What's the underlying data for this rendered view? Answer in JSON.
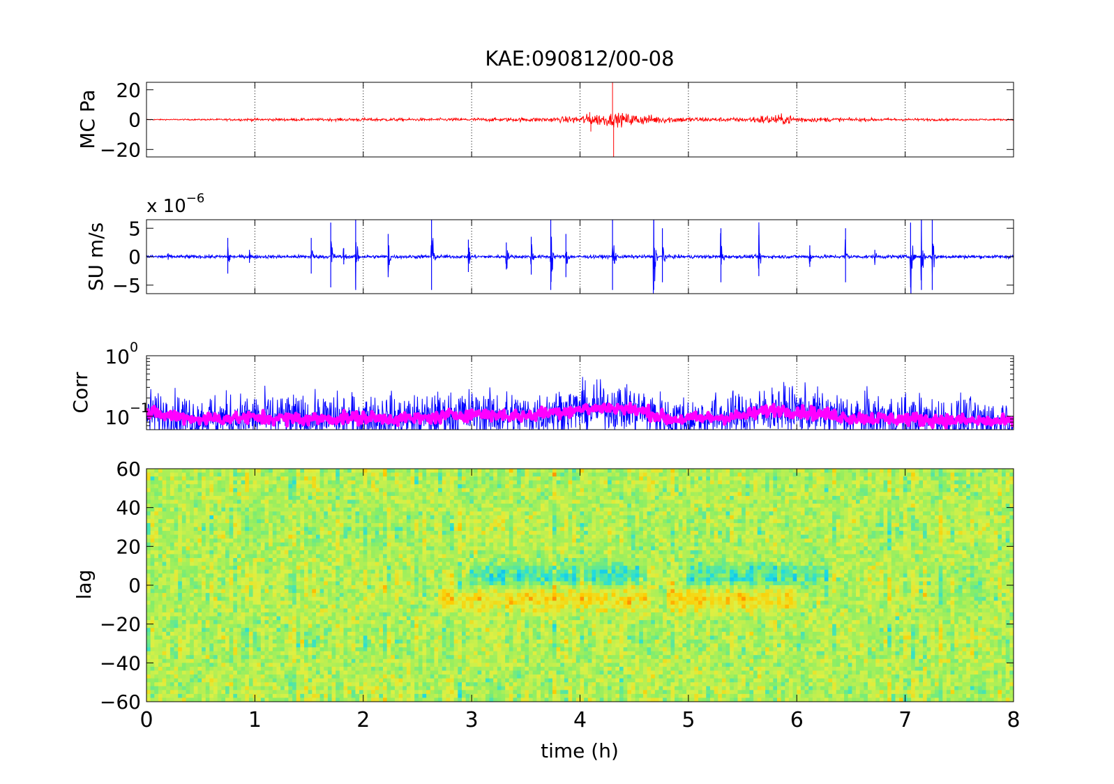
{
  "title": "KAE:090812/00-08",
  "chart_data": [
    {
      "panel": "mc",
      "type": "line",
      "ylabel": "MC Pa",
      "xlim": [
        0,
        8
      ],
      "ylim": [
        -25,
        25
      ],
      "yticks": [
        -20,
        0,
        20
      ],
      "ytick_labels": [
        "−20",
        "0",
        "20"
      ],
      "grid": "x-dotted",
      "colors": {
        "line": "#ff0000"
      },
      "envelope": {
        "x": [
          0,
          0.5,
          1.0,
          1.5,
          2.0,
          2.5,
          3.0,
          3.5,
          3.8,
          4.0,
          4.1,
          4.3,
          4.5,
          4.7,
          5.0,
          5.5,
          5.7,
          5.9,
          6.1,
          6.5,
          7.0,
          7.5,
          8.0
        ],
        "amplitude": [
          0.3,
          0.4,
          0.8,
          0.7,
          1.0,
          0.8,
          1.0,
          1.2,
          1.5,
          2.5,
          3.5,
          4.0,
          3.5,
          2.5,
          1.5,
          1.2,
          2.8,
          3.0,
          1.5,
          1.0,
          0.8,
          0.6,
          0.5
        ]
      },
      "spikes": [
        {
          "x": 4.09,
          "value": 5
        },
        {
          "x": 4.1,
          "value": -8
        },
        {
          "x": 4.3,
          "value": 25
        },
        {
          "x": 4.31,
          "value": -25
        }
      ]
    },
    {
      "panel": "su",
      "type": "line",
      "ylabel": "SU m/s",
      "exponent_label": "x 10",
      "exponent_power": "−6",
      "xlim": [
        0,
        8
      ],
      "ylim": [
        -6.5,
        6.5
      ],
      "yticks": [
        -5,
        0,
        5
      ],
      "ytick_labels": [
        "−5",
        "0",
        "5"
      ],
      "grid": "x-dotted",
      "colors": {
        "line": "#0000ff"
      },
      "baseline_noise": 0.15,
      "bursts": [
        {
          "x": 0.2,
          "amp": 0.6
        },
        {
          "x": 0.4,
          "amp": 0.3
        },
        {
          "x": 0.75,
          "amp": 3.3
        },
        {
          "x": 0.95,
          "amp": 1.2
        },
        {
          "x": 1.52,
          "amp": 3.3
        },
        {
          "x": 1.7,
          "amp": 6.0
        },
        {
          "x": 1.82,
          "amp": 1.5
        },
        {
          "x": 1.93,
          "amp": 6.5
        },
        {
          "x": 2.23,
          "amp": 4.0
        },
        {
          "x": 2.63,
          "amp": 6.5
        },
        {
          "x": 2.97,
          "amp": 3.0
        },
        {
          "x": 3.32,
          "amp": 2.5
        },
        {
          "x": 3.55,
          "amp": 3.5
        },
        {
          "x": 3.73,
          "amp": 6.5
        },
        {
          "x": 3.87,
          "amp": 4.0
        },
        {
          "x": 4.3,
          "amp": 6.5
        },
        {
          "x": 4.68,
          "amp": 6.5
        },
        {
          "x": 4.76,
          "amp": 5.0
        },
        {
          "x": 5.3,
          "amp": 5.0
        },
        {
          "x": 5.65,
          "amp": 3.8
        },
        {
          "x": 6.12,
          "amp": 2.0
        },
        {
          "x": 6.45,
          "amp": 5.0
        },
        {
          "x": 6.72,
          "amp": 1.2
        },
        {
          "x": 7.05,
          "amp": 6.0
        },
        {
          "x": 7.15,
          "amp": 6.5
        },
        {
          "x": 7.25,
          "amp": 6.5
        }
      ]
    },
    {
      "panel": "corr",
      "type": "line",
      "ylabel": "Corr",
      "yscale": "log",
      "xlim": [
        0,
        8
      ],
      "ylim": [
        0.06,
        1.0
      ],
      "ytick_labels": [
        {
          "base": "10",
          "power": "0",
          "value": 1.0
        },
        {
          "base": "10",
          "power": "−1",
          "value": 0.1
        }
      ],
      "grid": "x-dotted",
      "colors": {
        "raw": "#0000ff",
        "smoothed": "#ff00ff"
      },
      "series": [
        {
          "role": "raw",
          "style": "blue noisy line"
        },
        {
          "role": "smoothed",
          "style": "thick magenta line"
        }
      ],
      "level": {
        "x": [
          0,
          0.5,
          1.0,
          1.5,
          2.0,
          2.5,
          3.0,
          3.5,
          3.8,
          4.0,
          4.3,
          4.6,
          4.8,
          5.0,
          5.5,
          5.8,
          6.0,
          6.5,
          7.0,
          7.5,
          8.0
        ],
        "value": [
          0.11,
          0.09,
          0.095,
          0.09,
          0.095,
          0.09,
          0.11,
          0.1,
          0.12,
          0.13,
          0.14,
          0.12,
          0.09,
          0.09,
          0.1,
          0.13,
          0.12,
          0.095,
          0.09,
          0.085,
          0.08
        ]
      }
    },
    {
      "panel": "lag",
      "type": "heatmap",
      "ylabel": "lag",
      "xlabel": "time (h)",
      "xlim": [
        0,
        8
      ],
      "ylim": [
        -60,
        60
      ],
      "xticks": [
        0,
        1,
        2,
        3,
        4,
        5,
        6,
        7,
        8
      ],
      "xtick_labels": [
        "0",
        "1",
        "2",
        "3",
        "4",
        "5",
        "6",
        "7",
        "8"
      ],
      "yticks": [
        -60,
        -40,
        -20,
        0,
        20,
        40,
        60
      ],
      "ytick_labels": [
        "−60",
        "−40",
        "−20",
        "0",
        "20",
        "40",
        "60"
      ],
      "colormap": "jet",
      "colors": [
        "#0033ff",
        "#00aaff",
        "#22dddd",
        "#88ee66",
        "#ddf044",
        "#ffcc00",
        "#ff6600",
        "#cc0000"
      ],
      "features": [
        {
          "lag": 5,
          "x_range": [
            3.0,
            4.6
          ],
          "sign": -1
        },
        {
          "lag": 5,
          "x_range": [
            5.0,
            6.3
          ],
          "sign": -1
        },
        {
          "lag": -7,
          "x_range": [
            2.7,
            4.6
          ],
          "sign": 1
        },
        {
          "lag": -7,
          "x_range": [
            4.8,
            6.0
          ],
          "sign": 1
        }
      ]
    }
  ]
}
